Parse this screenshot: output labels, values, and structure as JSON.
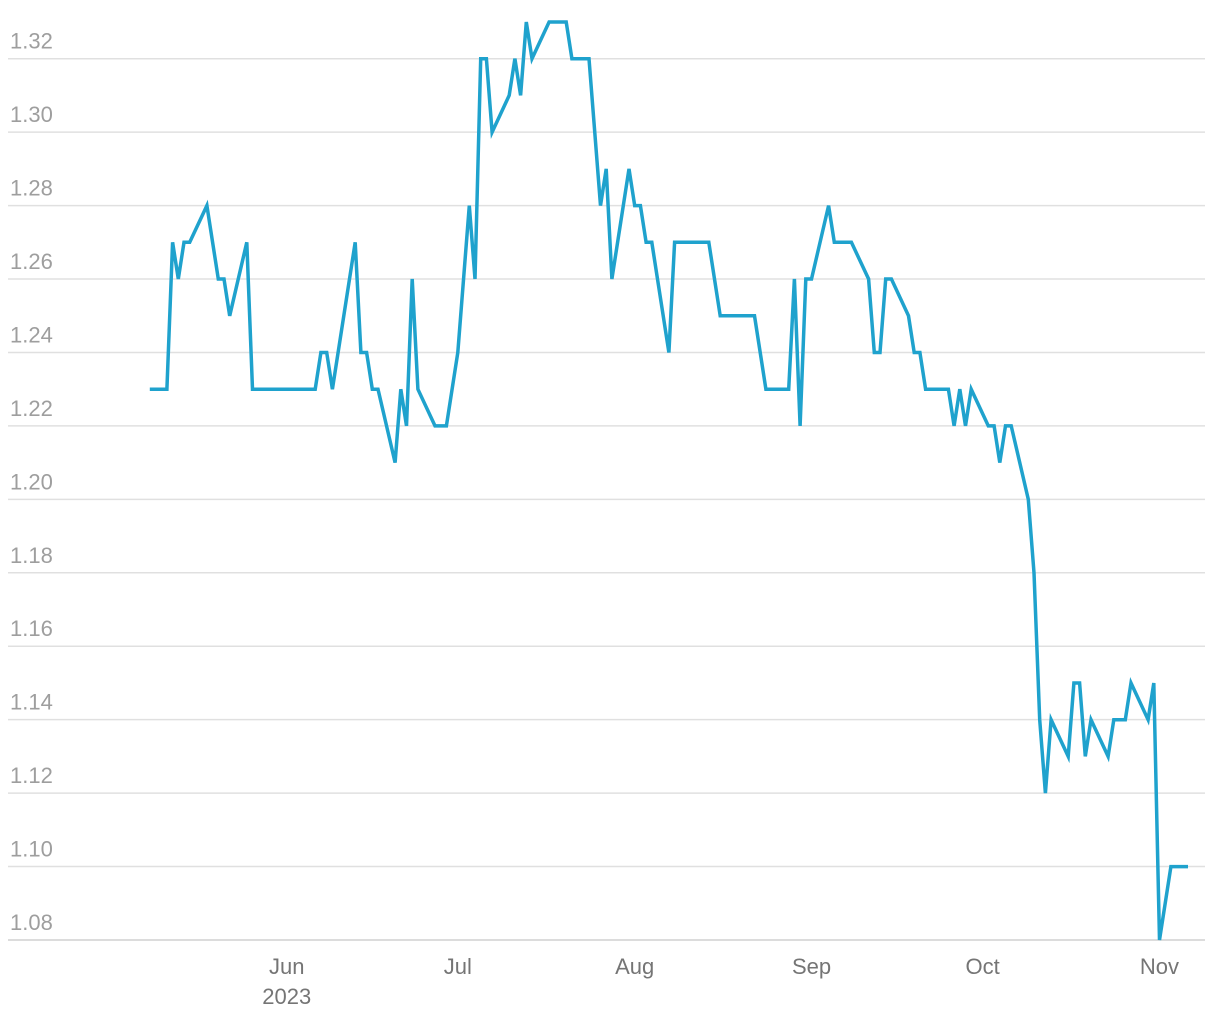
{
  "chart_data": {
    "type": "line",
    "title": "",
    "xlabel": "",
    "ylabel": "",
    "ylim": [
      1.08,
      1.33
    ],
    "y_ticks": [
      "1.08",
      "1.10",
      "1.12",
      "1.14",
      "1.16",
      "1.18",
      "1.20",
      "1.22",
      "1.24",
      "1.26",
      "1.28",
      "1.30",
      "1.32"
    ],
    "x_ticks": [
      {
        "date": "2023-06-01",
        "label": "Jun",
        "sublabel": "2023"
      },
      {
        "date": "2023-07-01",
        "label": "Jul",
        "sublabel": ""
      },
      {
        "date": "2023-08-01",
        "label": "Aug",
        "sublabel": ""
      },
      {
        "date": "2023-09-01",
        "label": "Sep",
        "sublabel": ""
      },
      {
        "date": "2023-10-01",
        "label": "Oct",
        "sublabel": ""
      },
      {
        "date": "2023-11-01",
        "label": "Nov",
        "sublabel": ""
      }
    ],
    "x_domain": [
      "2023-05-04",
      "2023-11-06"
    ],
    "grid": true,
    "legend": "none",
    "series": [
      {
        "color": "#1fa2cd",
        "points": [
          [
            "2023-05-08",
            1.23
          ],
          [
            "2023-05-11",
            1.23
          ],
          [
            "2023-05-12",
            1.27
          ],
          [
            "2023-05-13",
            1.26
          ],
          [
            "2023-05-14",
            1.27
          ],
          [
            "2023-05-15",
            1.27
          ],
          [
            "2023-05-18",
            1.28
          ],
          [
            "2023-05-20",
            1.26
          ],
          [
            "2023-05-21",
            1.26
          ],
          [
            "2023-05-22",
            1.25
          ],
          [
            "2023-05-25",
            1.27
          ],
          [
            "2023-05-26",
            1.23
          ],
          [
            "2023-05-27",
            1.23
          ],
          [
            "2023-06-05",
            1.23
          ],
          [
            "2023-06-06",
            1.23
          ],
          [
            "2023-06-07",
            1.24
          ],
          [
            "2023-06-08",
            1.24
          ],
          [
            "2023-06-09",
            1.23
          ],
          [
            "2023-06-13",
            1.27
          ],
          [
            "2023-06-14",
            1.24
          ],
          [
            "2023-06-15",
            1.24
          ],
          [
            "2023-06-16",
            1.23
          ],
          [
            "2023-06-17",
            1.23
          ],
          [
            "2023-06-20",
            1.21
          ],
          [
            "2023-06-21",
            1.23
          ],
          [
            "2023-06-22",
            1.22
          ],
          [
            "2023-06-23",
            1.26
          ],
          [
            "2023-06-24",
            1.23
          ],
          [
            "2023-06-27",
            1.22
          ],
          [
            "2023-06-29",
            1.22
          ],
          [
            "2023-07-01",
            1.24
          ],
          [
            "2023-07-03",
            1.28
          ],
          [
            "2023-07-04",
            1.26
          ],
          [
            "2023-07-05",
            1.32
          ],
          [
            "2023-07-06",
            1.32
          ],
          [
            "2023-07-07",
            1.3
          ],
          [
            "2023-07-10",
            1.31
          ],
          [
            "2023-07-11",
            1.32
          ],
          [
            "2023-07-12",
            1.31
          ],
          [
            "2023-07-13",
            1.33
          ],
          [
            "2023-07-14",
            1.32
          ],
          [
            "2023-07-17",
            1.33
          ],
          [
            "2023-07-20",
            1.33
          ],
          [
            "2023-07-21",
            1.32
          ],
          [
            "2023-07-24",
            1.32
          ],
          [
            "2023-07-26",
            1.28
          ],
          [
            "2023-07-27",
            1.29
          ],
          [
            "2023-07-28",
            1.26
          ],
          [
            "2023-07-31",
            1.29
          ],
          [
            "2023-08-01",
            1.28
          ],
          [
            "2023-08-02",
            1.28
          ],
          [
            "2023-08-03",
            1.27
          ],
          [
            "2023-08-04",
            1.27
          ],
          [
            "2023-08-07",
            1.24
          ],
          [
            "2023-08-08",
            1.27
          ],
          [
            "2023-08-14",
            1.27
          ],
          [
            "2023-08-16",
            1.25
          ],
          [
            "2023-08-22",
            1.25
          ],
          [
            "2023-08-24",
            1.23
          ],
          [
            "2023-08-28",
            1.23
          ],
          [
            "2023-08-29",
            1.26
          ],
          [
            "2023-08-30",
            1.22
          ],
          [
            "2023-08-31",
            1.26
          ],
          [
            "2023-09-01",
            1.26
          ],
          [
            "2023-09-04",
            1.28
          ],
          [
            "2023-09-05",
            1.27
          ],
          [
            "2023-09-08",
            1.27
          ],
          [
            "2023-09-11",
            1.26
          ],
          [
            "2023-09-12",
            1.24
          ],
          [
            "2023-09-13",
            1.24
          ],
          [
            "2023-09-14",
            1.26
          ],
          [
            "2023-09-15",
            1.26
          ],
          [
            "2023-09-18",
            1.25
          ],
          [
            "2023-09-19",
            1.24
          ],
          [
            "2023-09-20",
            1.24
          ],
          [
            "2023-09-21",
            1.23
          ],
          [
            "2023-09-25",
            1.23
          ],
          [
            "2023-09-26",
            1.22
          ],
          [
            "2023-09-27",
            1.23
          ],
          [
            "2023-09-28",
            1.22
          ],
          [
            "2023-09-29",
            1.23
          ],
          [
            "2023-10-02",
            1.22
          ],
          [
            "2023-10-03",
            1.22
          ],
          [
            "2023-10-04",
            1.21
          ],
          [
            "2023-10-05",
            1.22
          ],
          [
            "2023-10-06",
            1.22
          ],
          [
            "2023-10-09",
            1.2
          ],
          [
            "2023-10-10",
            1.18
          ],
          [
            "2023-10-11",
            1.14
          ],
          [
            "2023-10-12",
            1.12
          ],
          [
            "2023-10-13",
            1.14
          ],
          [
            "2023-10-16",
            1.13
          ],
          [
            "2023-10-17",
            1.15
          ],
          [
            "2023-10-18",
            1.15
          ],
          [
            "2023-10-19",
            1.13
          ],
          [
            "2023-10-20",
            1.14
          ],
          [
            "2023-10-23",
            1.13
          ],
          [
            "2023-10-24",
            1.14
          ],
          [
            "2023-10-26",
            1.14
          ],
          [
            "2023-10-27",
            1.15
          ],
          [
            "2023-10-30",
            1.14
          ],
          [
            "2023-10-31",
            1.15
          ],
          [
            "2023-11-01",
            1.08
          ],
          [
            "2023-11-03",
            1.1
          ],
          [
            "2023-11-06",
            1.1
          ]
        ]
      }
    ]
  }
}
